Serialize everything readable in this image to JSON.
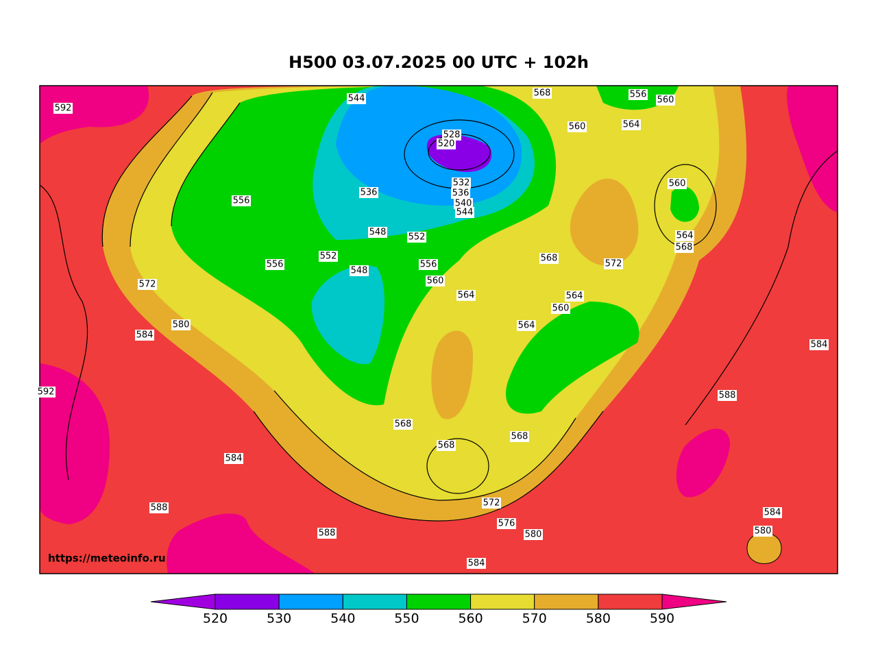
{
  "header": {
    "title": "H500  03.07.2025 00 UTC + 102h"
  },
  "map": {
    "watermark": "https://meteoinfo.ru",
    "contour_labels": [
      592,
      544,
      568,
      556,
      560,
      564,
      560,
      528,
      520,
      536,
      532,
      536,
      540,
      544,
      560,
      556,
      548,
      552,
      564,
      568,
      556,
      552,
      556,
      568,
      572,
      548,
      572,
      560,
      564,
      564,
      560,
      564,
      580,
      584,
      584,
      592,
      588,
      568,
      568,
      568,
      584,
      572,
      588,
      584,
      576,
      588,
      580,
      580,
      584
    ]
  },
  "colorbar": {
    "ticks": [
      520,
      530,
      540,
      550,
      560,
      570,
      580,
      590
    ],
    "colors": [
      "#a000e0",
      "#8a00e6",
      "#00a0ff",
      "#00c8c8",
      "#00d200",
      "#e6dc32",
      "#e6ad2d",
      "#f03c3c",
      "#f00082"
    ]
  }
}
